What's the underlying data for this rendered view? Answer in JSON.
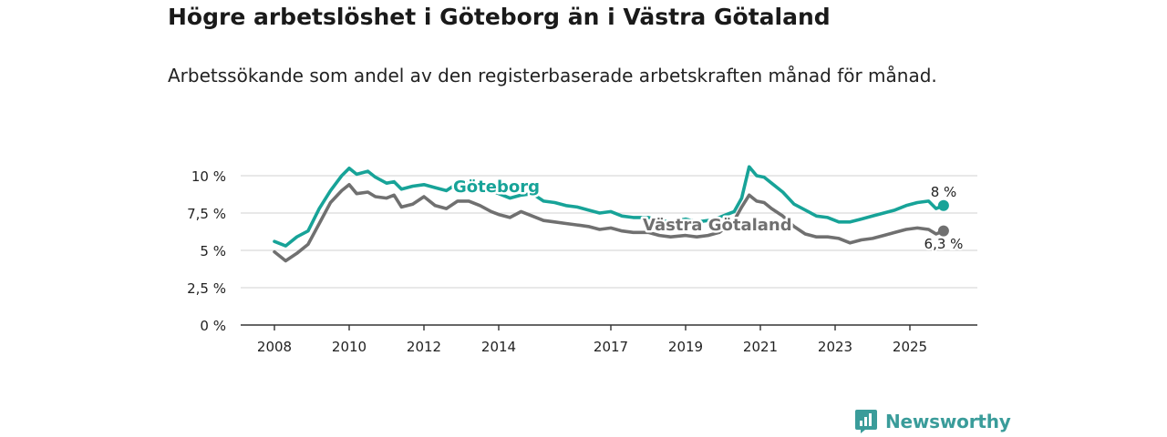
{
  "title": "Högre arbetslöshet i Göteborg än i Västra Götaland",
  "subtitle": "Arbetssökande som andel av den registerbaserade arbetskraften månad för månad.",
  "brand": {
    "name": "Newsworthy",
    "icon": "newsworthy-logo-icon"
  },
  "colors": {
    "goteborg": "#17a398",
    "vastra": "#707070",
    "grid": "#d9d9d9",
    "axis": "#333333"
  },
  "chart_data": {
    "type": "line",
    "title": "Högre arbetslöshet i Göteborg än i Västra Götaland",
    "xlabel": "",
    "ylabel": "",
    "xlim": [
      2008,
      2025.9
    ],
    "ylim": [
      0,
      10
    ],
    "y_ticks": [
      0,
      2.5,
      5,
      7.5,
      10
    ],
    "y_tick_labels": [
      "0 %",
      "2,5 %",
      "5 %",
      "7,5 %",
      "10 %"
    ],
    "x_ticks": [
      2008,
      2010,
      2012,
      2014,
      2017,
      2019,
      2021,
      2023,
      2025
    ],
    "x_tick_labels": [
      "2008",
      "2010",
      "2012",
      "2014",
      "2017",
      "2019",
      "2021",
      "2023",
      "2025"
    ],
    "series": [
      {
        "name": "Göteborg",
        "label": "Göteborg",
        "end_label": "8 %",
        "color": "#17a398",
        "x": [
          2008,
          2008.3,
          2008.6,
          2008.9,
          2009.2,
          2009.5,
          2009.8,
          2010.0,
          2010.2,
          2010.5,
          2010.7,
          2011.0,
          2011.2,
          2011.4,
          2011.7,
          2012.0,
          2012.3,
          2012.6,
          2012.9,
          2013.2,
          2013.5,
          2013.8,
          2014.0,
          2014.3,
          2014.6,
          2014.9,
          2015.2,
          2015.5,
          2015.8,
          2016.1,
          2016.4,
          2016.7,
          2017.0,
          2017.3,
          2017.6,
          2018.0,
          2018.3,
          2018.6,
          2019.0,
          2019.3,
          2019.6,
          2019.9,
          2020.1,
          2020.3,
          2020.5,
          2020.7,
          2020.9,
          2021.1,
          2021.3,
          2021.6,
          2021.9,
          2022.2,
          2022.5,
          2022.8,
          2023.1,
          2023.4,
          2023.7,
          2024.0,
          2024.3,
          2024.6,
          2024.9,
          2025.2,
          2025.5,
          2025.7,
          2025.9
        ],
        "values": [
          5.6,
          5.3,
          5.9,
          6.3,
          7.8,
          9.0,
          10.0,
          10.5,
          10.1,
          10.3,
          9.9,
          9.5,
          9.6,
          9.1,
          9.3,
          9.4,
          9.2,
          9.0,
          9.5,
          9.5,
          9.4,
          9.0,
          8.8,
          8.5,
          8.7,
          8.8,
          8.3,
          8.2,
          8.0,
          7.9,
          7.7,
          7.5,
          7.6,
          7.3,
          7.2,
          7.2,
          7.0,
          6.9,
          7.1,
          6.9,
          7.0,
          7.2,
          7.4,
          7.6,
          8.5,
          10.6,
          10.0,
          9.9,
          9.5,
          8.9,
          8.1,
          7.7,
          7.3,
          7.2,
          6.9,
          6.9,
          7.1,
          7.3,
          7.5,
          7.7,
          8.0,
          8.2,
          8.3,
          7.8,
          8.0
        ]
      },
      {
        "name": "Västra Götaland",
        "label": "Västra Götaland",
        "end_label": "6,3 %",
        "color": "#707070",
        "x": [
          2008,
          2008.3,
          2008.6,
          2008.9,
          2009.2,
          2009.5,
          2009.8,
          2010.0,
          2010.2,
          2010.5,
          2010.7,
          2011.0,
          2011.2,
          2011.4,
          2011.7,
          2012.0,
          2012.3,
          2012.6,
          2012.9,
          2013.2,
          2013.5,
          2013.8,
          2014.0,
          2014.3,
          2014.6,
          2014.9,
          2015.2,
          2015.5,
          2015.8,
          2016.1,
          2016.4,
          2016.7,
          2017.0,
          2017.3,
          2017.6,
          2018.0,
          2018.3,
          2018.6,
          2019.0,
          2019.3,
          2019.6,
          2019.9,
          2020.1,
          2020.3,
          2020.5,
          2020.7,
          2020.9,
          2021.1,
          2021.3,
          2021.6,
          2021.9,
          2022.2,
          2022.5,
          2022.8,
          2023.1,
          2023.4,
          2023.7,
          2024.0,
          2024.3,
          2024.6,
          2024.9,
          2025.2,
          2025.5,
          2025.7,
          2025.9
        ],
        "values": [
          4.9,
          4.3,
          4.8,
          5.4,
          6.8,
          8.2,
          9.0,
          9.4,
          8.8,
          8.9,
          8.6,
          8.5,
          8.7,
          7.9,
          8.1,
          8.6,
          8.0,
          7.8,
          8.3,
          8.3,
          8.0,
          7.6,
          7.4,
          7.2,
          7.6,
          7.3,
          7.0,
          6.9,
          6.8,
          6.7,
          6.6,
          6.4,
          6.5,
          6.3,
          6.2,
          6.2,
          6.0,
          5.9,
          6.0,
          5.9,
          6.0,
          6.2,
          6.6,
          7.0,
          7.9,
          8.7,
          8.3,
          8.2,
          7.8,
          7.3,
          6.6,
          6.1,
          5.9,
          5.9,
          5.8,
          5.5,
          5.7,
          5.8,
          6.0,
          6.2,
          6.4,
          6.5,
          6.4,
          6.1,
          6.3
        ]
      }
    ]
  }
}
